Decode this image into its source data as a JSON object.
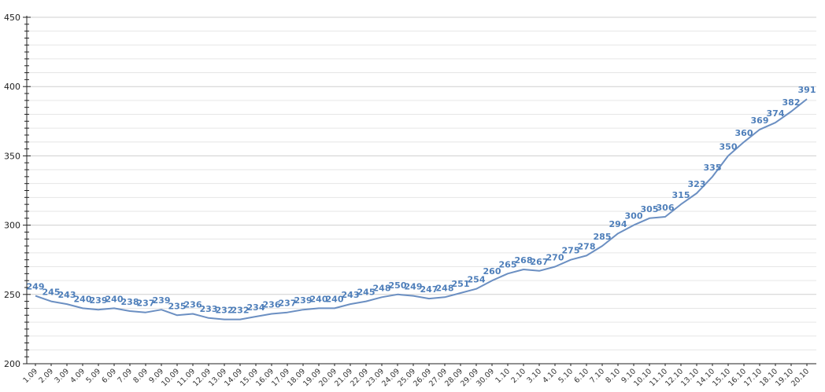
{
  "chart_data": {
    "type": "line",
    "title": "",
    "xlabel": "",
    "ylabel": "",
    "ylim": [
      200,
      450
    ],
    "yticks": [
      200,
      250,
      300,
      350,
      400,
      450
    ],
    "grid": true,
    "legend": "none",
    "line_color": "#6b8fc2",
    "label_color": "#4f7fba",
    "categories": [
      "1.09",
      "2.09",
      "3.09",
      "4.09",
      "5.09",
      "6.09",
      "7.09",
      "8.09",
      "9.09",
      "10.09",
      "11.09",
      "12.09",
      "13.09",
      "14.09",
      "15.09",
      "16.09",
      "17.09",
      "18.09",
      "19.09",
      "20.09",
      "21.09",
      "22.09",
      "23.09",
      "24.09",
      "25.09",
      "26.09",
      "27.09",
      "28.09",
      "29.09",
      "30.09",
      "1.10",
      "2.10",
      "3.10",
      "4.10",
      "5.10",
      "6.10",
      "7.10",
      "8.10",
      "9.10",
      "10.10",
      "11.10",
      "12.10",
      "13.10",
      "14.10",
      "15.10",
      "16.10",
      "17.10",
      "18.10",
      "19.10",
      "20.10"
    ],
    "values": [
      249,
      245,
      243,
      240,
      239,
      240,
      238,
      237,
      239,
      235,
      236,
      233,
      232,
      232,
      234,
      236,
      237,
      239,
      240,
      240,
      243,
      245,
      248,
      250,
      249,
      247,
      248,
      251,
      254,
      260,
      265,
      268,
      267,
      270,
      275,
      278,
      285,
      294,
      300,
      305,
      306,
      315,
      323,
      335,
      350,
      360,
      369,
      374,
      382,
      391
    ]
  }
}
